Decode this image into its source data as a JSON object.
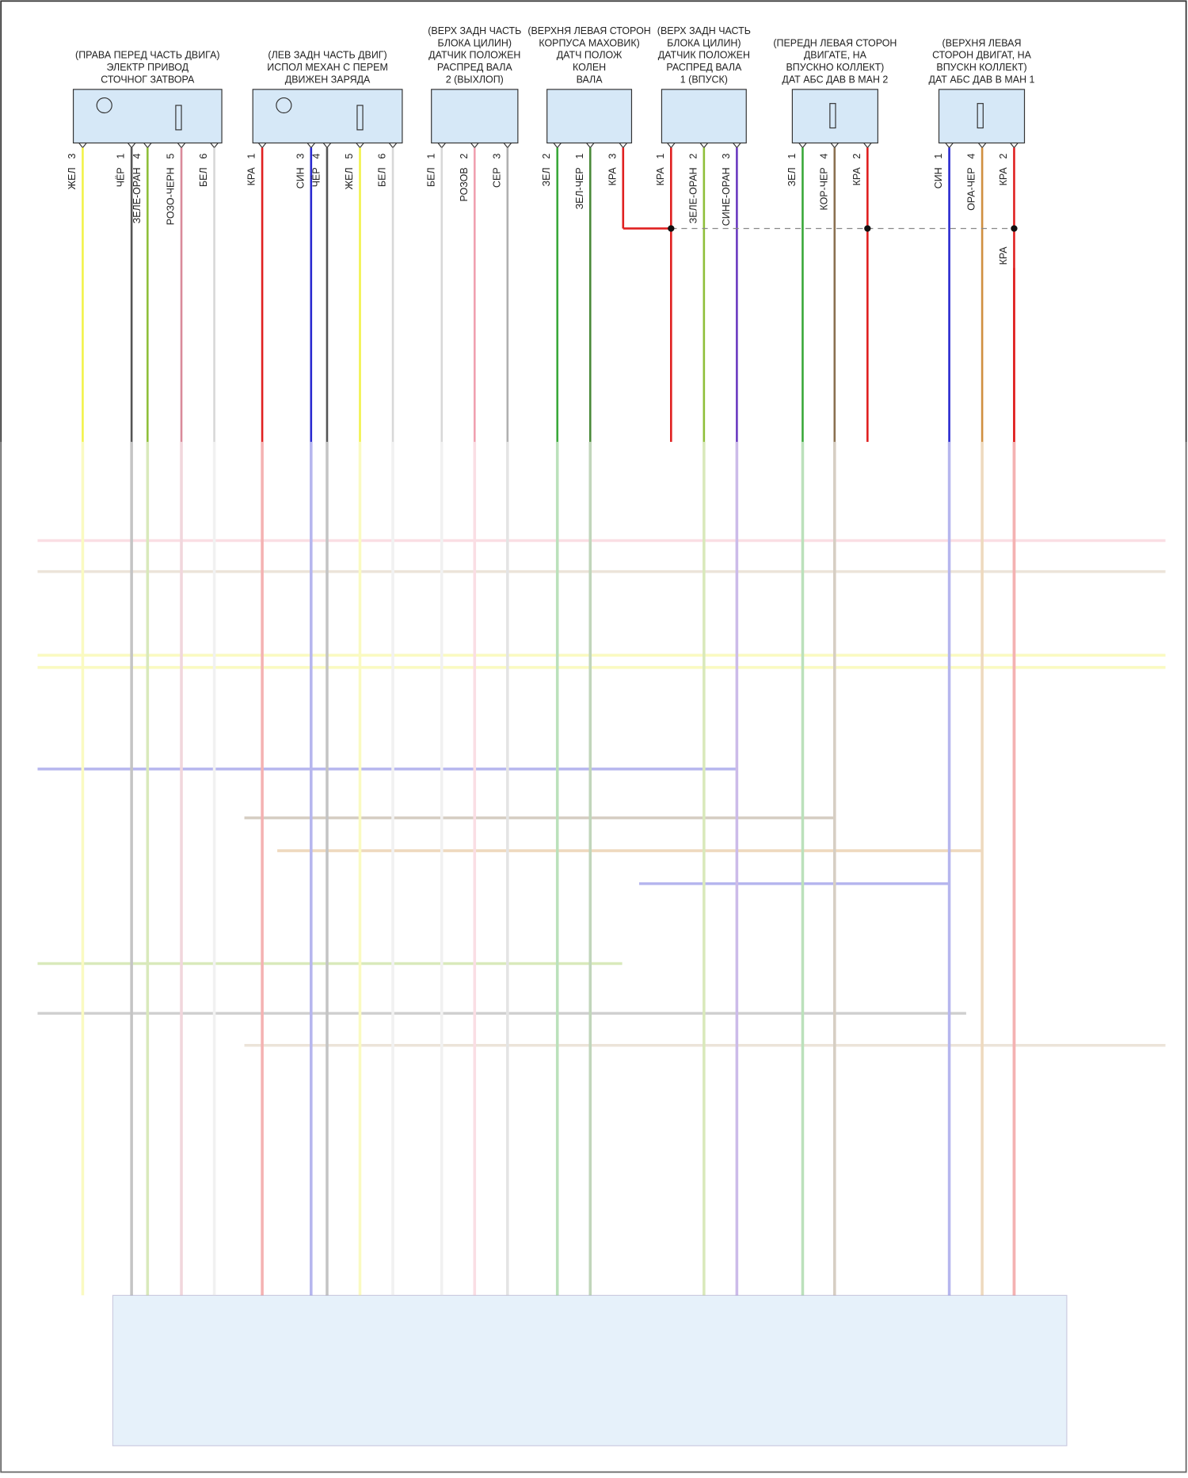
{
  "components": [
    {
      "label": [
        "(ПРАВА ПЕРЕД ЧАСТЬ ДВИГА)",
        "ЭЛЕКТР ПРИВОД",
        "СТОЧНОГ ЗАТВОРА"
      ],
      "pins": [
        {
          "number": "3",
          "wire": "ЖЕЛ",
          "color": "#f2f24a"
        },
        {
          "number": "1",
          "wire": "ЧЁР",
          "color": "#555555"
        },
        {
          "number": "4",
          "wire": "ЗЕЛЕ-ОРАН",
          "color": "#8fbf3a"
        },
        {
          "number": "5",
          "wire": "РОЗО-ЧЕРН",
          "color": "#d98a9a"
        },
        {
          "number": "6",
          "wire": "БЕЛ",
          "color": "#d8d8d8"
        }
      ]
    },
    {
      "label": [
        "(ЛЕВ ЗАДН ЧАСТЬ ДВИГ)",
        "ИСПОЛ МЕХАН С ПЕРЕМ",
        "ДВИЖЕН ЗАРЯДА"
      ],
      "pins": [
        {
          "number": "1",
          "wire": "КРА",
          "color": "#e02020"
        },
        {
          "number": "3",
          "wire": "СИН",
          "color": "#2a2ad0"
        },
        {
          "number": "4",
          "wire": "ЧЁР",
          "color": "#555555"
        },
        {
          "number": "5",
          "wire": "ЖЕЛ",
          "color": "#f2f24a"
        },
        {
          "number": "6",
          "wire": "БЕЛ",
          "color": "#d8d8d8"
        }
      ]
    },
    {
      "label": [
        "(ВЕРХ ЗАДН ЧАСТЬ",
        "БЛОКА ЦИЛИН)",
        "ДАТЧИК ПОЛОЖЕН",
        "РАСПРЕД ВАЛА",
        "2 (ВЫХЛОП)"
      ],
      "pins": [
        {
          "number": "1",
          "wire": "БЕЛ",
          "color": "#d8d8d8"
        },
        {
          "number": "2",
          "wire": "РОЗОВ",
          "color": "#f0a0b0"
        },
        {
          "number": "3",
          "wire": "СЕР",
          "color": "#b0b0b0"
        }
      ]
    },
    {
      "label": [
        "(ВЕРХНЯ ЛЕВАЯ СТОРОН",
        "КОРПУСА МАХОВИК)",
        "ДАТЧ ПОЛОЖ",
        "КОЛЕН",
        "ВАЛА"
      ],
      "pins": [
        {
          "number": "2",
          "wire": "ЗЕЛ",
          "color": "#3aa83a"
        },
        {
          "number": "1",
          "wire": "ЗЕЛ-ЧЕР",
          "color": "#4a8a3a"
        },
        {
          "number": "3",
          "wire": "КРА",
          "color": "#e02020"
        }
      ]
    },
    {
      "label": [
        "(ВЕРХ ЗАДН ЧАСТЬ",
        "БЛОКА ЦИЛИН)",
        "ДАТЧИК ПОЛОЖЕН",
        "РАСПРЕД ВАЛА",
        "1 (ВПУСК)"
      ],
      "pins": [
        {
          "number": "1",
          "wire": "КРА",
          "color": "#e02020"
        },
        {
          "number": "2",
          "wire": "ЗЕЛЕ-ОРАН",
          "color": "#8fbf3a"
        },
        {
          "number": "3",
          "wire": "СИНЕ-ОРАН",
          "color": "#6a3ac0"
        }
      ]
    },
    {
      "label": [
        "(ПЕРЕДН ЛЕВАЯ СТОРОН",
        "ДВИГАТЕ, НА",
        "ВПУСКНО КОЛЛЕКТ)",
        "ДАТ АБС ДАВ В МАН 2"
      ],
      "pins": [
        {
          "number": "1",
          "wire": "ЗЕЛ",
          "color": "#3aa83a"
        },
        {
          "number": "4",
          "wire": "КОР-ЧЕР",
          "color": "#8a7050"
        },
        {
          "number": "2",
          "wire": "КРА",
          "color": "#e02020"
        }
      ]
    },
    {
      "label": [
        "(ВЕРХНЯ ЛЕВАЯ",
        "СТОРОН ДВИГАТ, НА",
        "ВПУСКН КОЛЛЕКТ)",
        "ДАТ АБС ДАВ В МАН 1"
      ],
      "pins": [
        {
          "number": "1",
          "wire": "СИН",
          "color": "#2a2ad0"
        },
        {
          "number": "4",
          "wire": "ОРА-ЧЕР",
          "color": "#d09040"
        },
        {
          "number": "2",
          "wire": "КРА",
          "color": "#e02020"
        }
      ]
    }
  ],
  "splice_wire": "КРА"
}
